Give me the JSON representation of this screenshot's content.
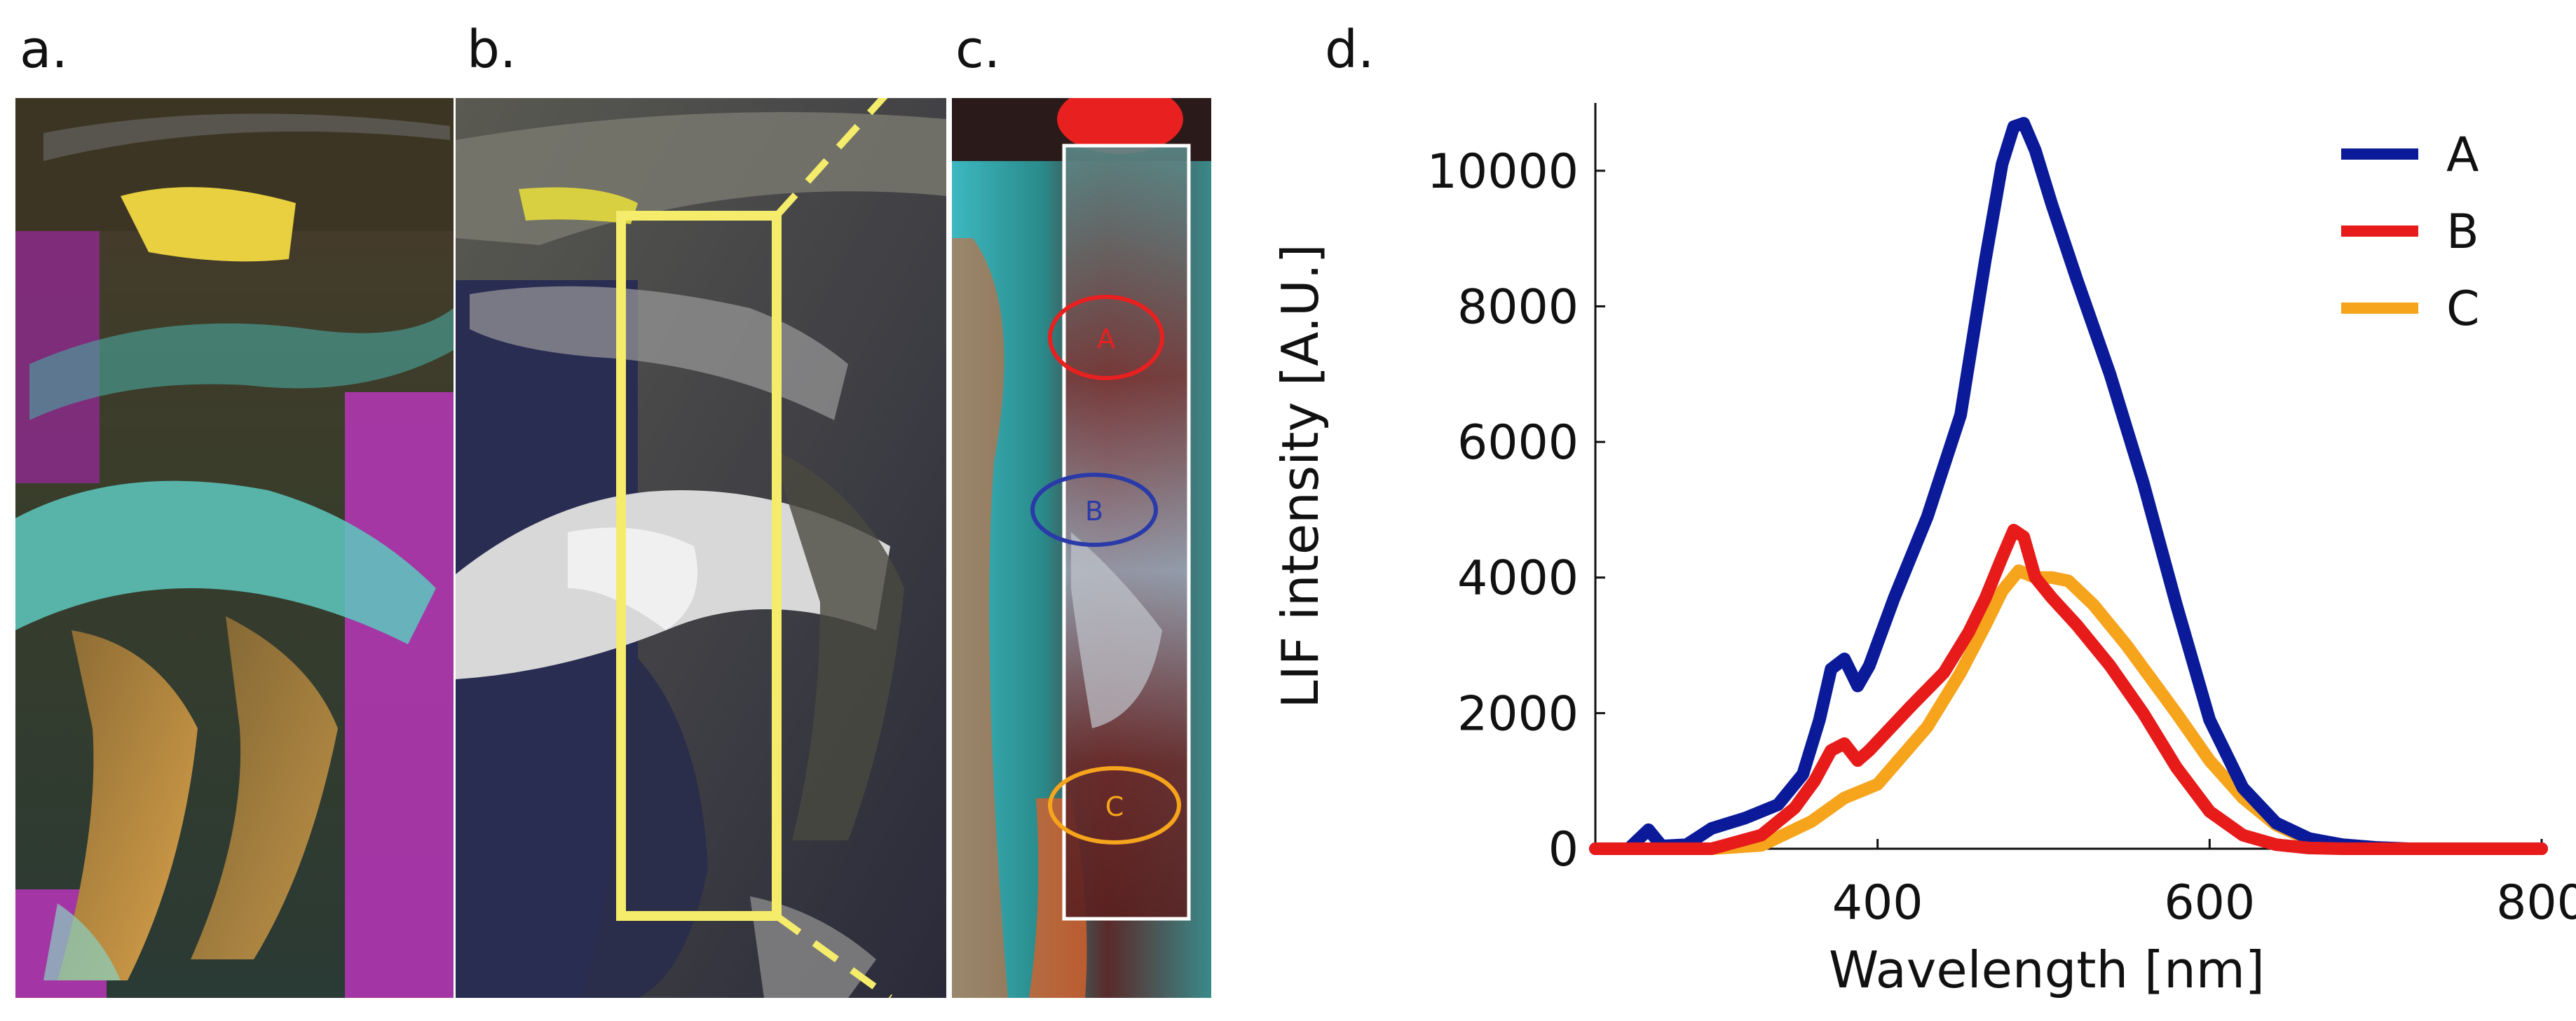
{
  "panel_labels": {
    "a": "a.",
    "b": "b.",
    "c": "c.",
    "d": "d."
  },
  "roi_labels": {
    "A": "A",
    "B": "B",
    "C": "C"
  },
  "chart_data": {
    "type": "line",
    "xlabel": "Wavelength [nm]",
    "ylabel": "LIF intensity [A.U.]",
    "xlim": [
      230,
      800
    ],
    "ylim": [
      0,
      11000
    ],
    "x_ticks": [
      400,
      600,
      800
    ],
    "y_ticks": [
      0,
      2000,
      4000,
      6000,
      8000,
      10000
    ],
    "legend_position": "top-right",
    "grid": false,
    "series": [
      {
        "name": "A",
        "color": "#0a1a99",
        "x": [
          230,
          250,
          262,
          270,
          285,
          300,
          320,
          340,
          355,
          365,
          372,
          380,
          388,
          395,
          410,
          430,
          450,
          465,
          475,
          482,
          488,
          495,
          505,
          520,
          540,
          560,
          580,
          600,
          620,
          640,
          660,
          680,
          700,
          720,
          760,
          800
        ],
        "y": [
          0,
          0,
          280,
          40,
          60,
          300,
          450,
          650,
          1100,
          1900,
          2650,
          2800,
          2400,
          2700,
          3700,
          4900,
          6400,
          8700,
          10100,
          10650,
          10700,
          10300,
          9500,
          8400,
          7000,
          5400,
          3600,
          1900,
          900,
          380,
          150,
          60,
          20,
          0,
          0,
          0
        ]
      },
      {
        "name": "B",
        "color": "#e81b1b",
        "x": [
          230,
          300,
          330,
          350,
          362,
          372,
          380,
          388,
          395,
          420,
          440,
          455,
          465,
          475,
          482,
          488,
          495,
          505,
          520,
          540,
          560,
          580,
          600,
          620,
          640,
          660,
          680,
          700,
          800
        ],
        "y": [
          0,
          0,
          200,
          600,
          1000,
          1450,
          1550,
          1300,
          1450,
          2100,
          2600,
          3200,
          3700,
          4300,
          4700,
          4600,
          4000,
          3700,
          3300,
          2700,
          2000,
          1200,
          550,
          200,
          60,
          10,
          0,
          0,
          0
        ]
      },
      {
        "name": "C",
        "color": "#f5a41c",
        "x": [
          230,
          300,
          330,
          360,
          380,
          400,
          430,
          450,
          465,
          475,
          485,
          495,
          505,
          515,
          530,
          550,
          580,
          600,
          620,
          640,
          660,
          680,
          700,
          720,
          800
        ],
        "y": [
          0,
          0,
          50,
          400,
          750,
          950,
          1800,
          2600,
          3300,
          3800,
          4100,
          4000,
          4000,
          3950,
          3600,
          3000,
          2000,
          1300,
          750,
          350,
          130,
          60,
          20,
          0,
          0
        ]
      }
    ]
  }
}
